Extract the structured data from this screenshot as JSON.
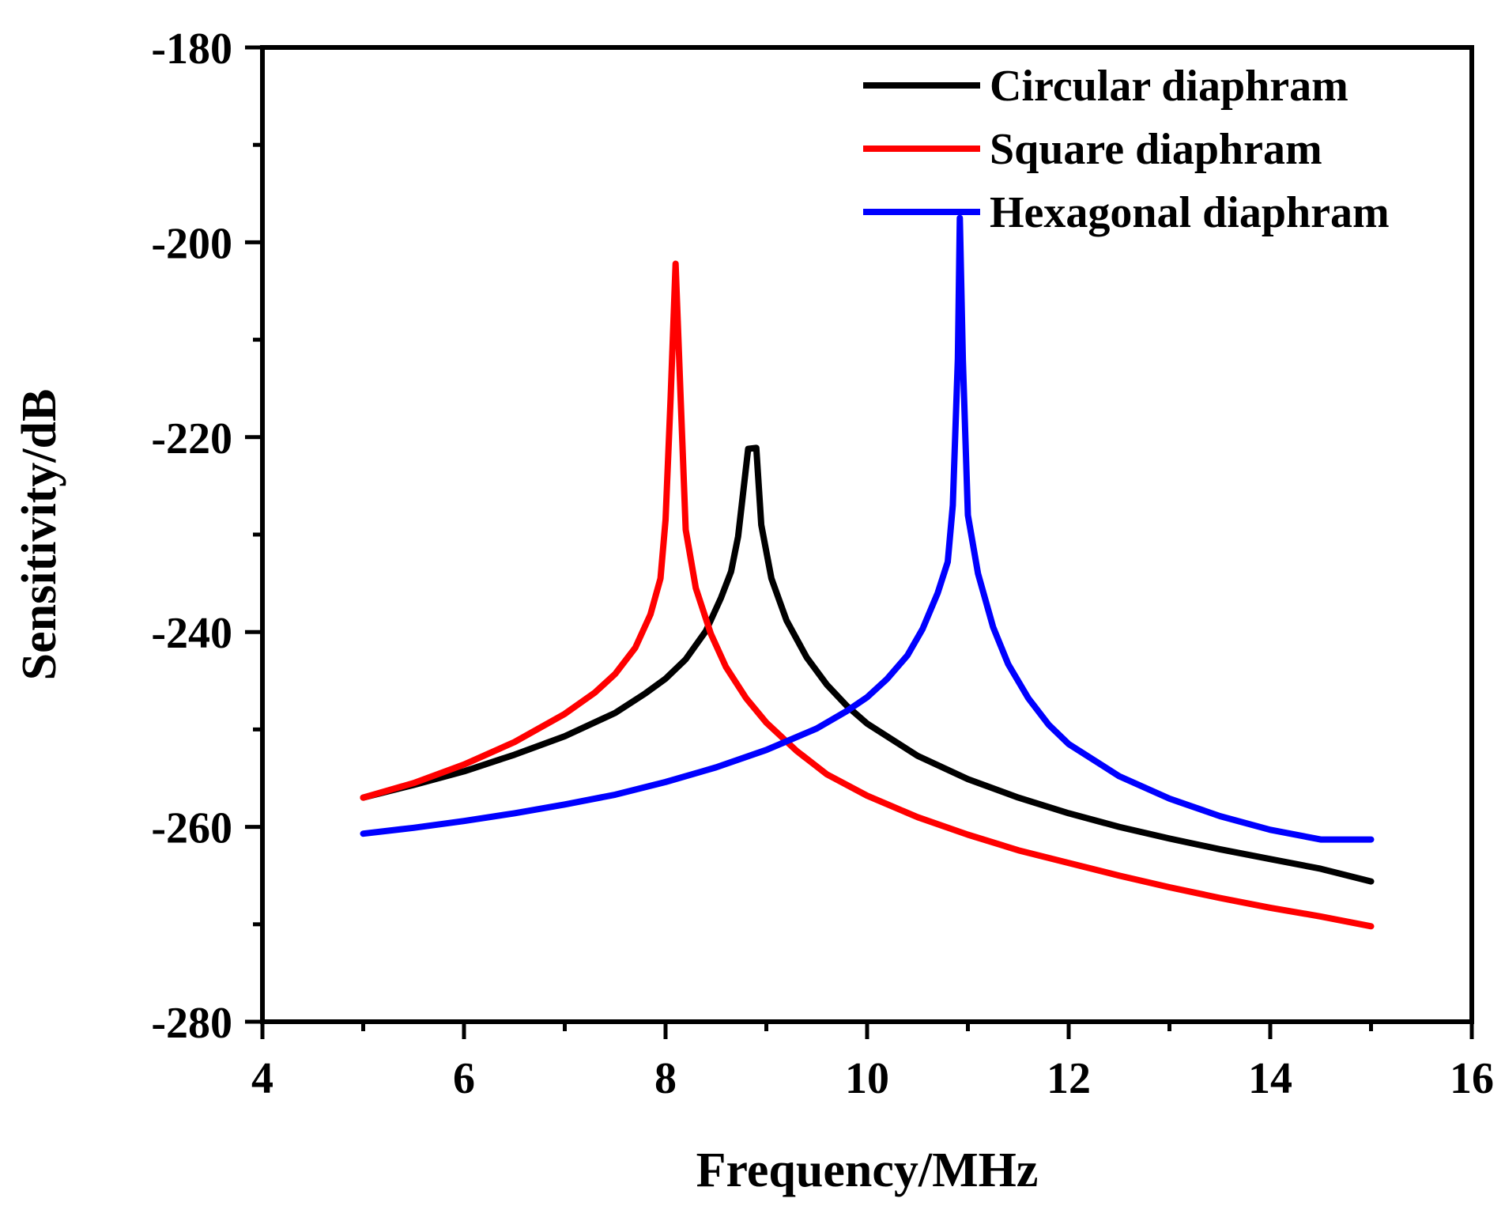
{
  "chart_data": {
    "type": "line",
    "title": "",
    "xlabel": "Frequency/MHz",
    "ylabel": "Sensitivity/dB",
    "xlim": [
      4,
      16
    ],
    "ylim": [
      -280,
      -180
    ],
    "x_ticks": [
      4,
      6,
      8,
      10,
      12,
      14,
      16
    ],
    "x_tick_labels": [
      "4",
      "6",
      "8",
      "10",
      "12",
      "14",
      "16"
    ],
    "x_minor_ticks": [
      5,
      7,
      9,
      11,
      13,
      15
    ],
    "y_ticks": [
      -280,
      -260,
      -240,
      -220,
      -200,
      -180
    ],
    "y_tick_labels": [
      "-280",
      "-260",
      "-240",
      "-220",
      "-200",
      "-180"
    ],
    "y_minor_ticks": [
      -270,
      -250,
      -230,
      -210,
      -190
    ],
    "grid": false,
    "legend_position": "top-right",
    "series": [
      {
        "name": "Circular diaphram",
        "color": "#000000",
        "points": [
          [
            5.0,
            -257.0
          ],
          [
            5.5,
            -255.7
          ],
          [
            6.0,
            -254.3
          ],
          [
            6.5,
            -252.6
          ],
          [
            7.0,
            -250.7
          ],
          [
            7.5,
            -248.3
          ],
          [
            7.8,
            -246.3
          ],
          [
            8.0,
            -244.8
          ],
          [
            8.2,
            -242.8
          ],
          [
            8.4,
            -239.9
          ],
          [
            8.55,
            -236.5
          ],
          [
            8.65,
            -233.8
          ],
          [
            8.72,
            -230.2
          ],
          [
            8.82,
            -221.2
          ],
          [
            8.9,
            -221.1
          ],
          [
            8.95,
            -229.0
          ],
          [
            9.05,
            -234.5
          ],
          [
            9.2,
            -238.8
          ],
          [
            9.4,
            -242.6
          ],
          [
            9.6,
            -245.4
          ],
          [
            9.8,
            -247.6
          ],
          [
            10.0,
            -249.4
          ],
          [
            10.5,
            -252.7
          ],
          [
            11.0,
            -255.1
          ],
          [
            11.5,
            -257.0
          ],
          [
            12.0,
            -258.6
          ],
          [
            12.5,
            -260.0
          ],
          [
            13.0,
            -261.2
          ],
          [
            13.5,
            -262.3
          ],
          [
            14.0,
            -263.3
          ],
          [
            14.5,
            -264.3
          ],
          [
            15.0,
            -265.6
          ]
        ]
      },
      {
        "name": "Square diaphram",
        "color": "#ff0000",
        "points": [
          [
            5.0,
            -257.0
          ],
          [
            5.5,
            -255.5
          ],
          [
            6.0,
            -253.6
          ],
          [
            6.5,
            -251.3
          ],
          [
            7.0,
            -248.4
          ],
          [
            7.3,
            -246.2
          ],
          [
            7.5,
            -244.3
          ],
          [
            7.7,
            -241.6
          ],
          [
            7.85,
            -238.2
          ],
          [
            7.95,
            -234.5
          ],
          [
            8.0,
            -228.5
          ],
          [
            8.05,
            -216.0
          ],
          [
            8.1,
            -202.2
          ],
          [
            8.15,
            -216.0
          ],
          [
            8.2,
            -229.5
          ],
          [
            8.3,
            -235.5
          ],
          [
            8.45,
            -240.2
          ],
          [
            8.6,
            -243.6
          ],
          [
            8.8,
            -246.8
          ],
          [
            9.0,
            -249.3
          ],
          [
            9.3,
            -252.2
          ],
          [
            9.6,
            -254.6
          ],
          [
            10.0,
            -256.8
          ],
          [
            10.5,
            -259.0
          ],
          [
            11.0,
            -260.8
          ],
          [
            11.5,
            -262.4
          ],
          [
            12.0,
            -263.7
          ],
          [
            12.5,
            -265.0
          ],
          [
            13.0,
            -266.2
          ],
          [
            13.5,
            -267.3
          ],
          [
            14.0,
            -268.3
          ],
          [
            14.5,
            -269.2
          ],
          [
            15.0,
            -270.2
          ]
        ]
      },
      {
        "name": "Hexagonal diaphram",
        "color": "#0000ff",
        "points": [
          [
            5.0,
            -260.7
          ],
          [
            5.5,
            -260.1
          ],
          [
            6.0,
            -259.4
          ],
          [
            6.5,
            -258.6
          ],
          [
            7.0,
            -257.7
          ],
          [
            7.5,
            -256.7
          ],
          [
            8.0,
            -255.4
          ],
          [
            8.5,
            -253.9
          ],
          [
            9.0,
            -252.1
          ],
          [
            9.5,
            -249.9
          ],
          [
            9.8,
            -248.1
          ],
          [
            10.0,
            -246.7
          ],
          [
            10.2,
            -244.8
          ],
          [
            10.4,
            -242.4
          ],
          [
            10.55,
            -239.7
          ],
          [
            10.7,
            -236.0
          ],
          [
            10.8,
            -232.8
          ],
          [
            10.85,
            -227.0
          ],
          [
            10.9,
            -212.0
          ],
          [
            10.92,
            -197.5
          ],
          [
            10.95,
            -212.0
          ],
          [
            11.0,
            -228.0
          ],
          [
            11.1,
            -234.0
          ],
          [
            11.25,
            -239.5
          ],
          [
            11.4,
            -243.3
          ],
          [
            11.6,
            -246.8
          ],
          [
            11.8,
            -249.5
          ],
          [
            12.0,
            -251.5
          ],
          [
            12.5,
            -254.8
          ],
          [
            13.0,
            -257.1
          ],
          [
            13.5,
            -258.9
          ],
          [
            14.0,
            -260.3
          ],
          [
            14.5,
            -261.3
          ],
          [
            15.0,
            -261.3
          ]
        ]
      }
    ]
  }
}
